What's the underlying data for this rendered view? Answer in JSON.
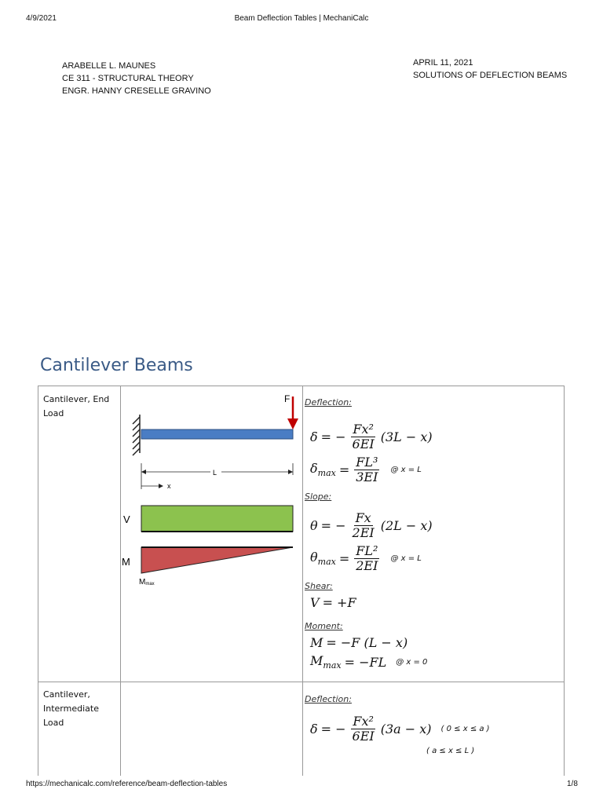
{
  "header": {
    "date": "4/9/2021",
    "title": "Beam Deflection Tables | MechaniCalc"
  },
  "author_block": [
    "ARABELLE L. MAUNES",
    "CE 311 -  STRUCTURAL THEORY",
    "ENGR. HANNY CRESELLE GRAVINO"
  ],
  "date_block": [
    "APRIL 11, 2021",
    "SOLUTIONS OF DEFLECTION BEAMS"
  ],
  "section_title": "Cantilever Beams",
  "table": {
    "rows": [
      {
        "label": "Cantilever, End Load",
        "diagram": {
          "force": "F",
          "length": "L",
          "x": "x",
          "shear": "V",
          "moment": "M",
          "mmax": "M",
          "mmax_sub": "max"
        },
        "items": [
          {
            "heading": "Deflection:"
          },
          {
            "sym": "δ",
            "eq": "= −",
            "num": "Fx²",
            "den": "6EI",
            "rhs": "(3L − x)"
          },
          {
            "sym": "δ",
            "sub": "max",
            "eq": "=",
            "num": "FL³",
            "den": "3EI",
            "note": "@ x = L"
          },
          {
            "heading": "Slope:"
          },
          {
            "sym": "θ",
            "eq": "= −",
            "num": "Fx",
            "den": "2EI",
            "rhs": "(2L − x)"
          },
          {
            "sym": "θ",
            "sub": "max",
            "eq": "=",
            "num": "FL²",
            "den": "2EI",
            "note": "@ x = L"
          },
          {
            "heading": "Shear:"
          },
          {
            "sym": "V",
            "eq": "= +F"
          },
          {
            "heading": "Moment:"
          },
          {
            "sym": "M",
            "eq": "= −F (L − x)"
          },
          {
            "sym": "M",
            "sub": "max",
            "eq": "= −FL",
            "note": "@ x = 0"
          }
        ]
      },
      {
        "label": "Cantilever, Intermediate Load",
        "items": [
          {
            "heading": "Deflection:"
          },
          {
            "sym": "δ",
            "eq": "= −",
            "num": "Fx²",
            "den": "6EI",
            "rhs": "(3a − x)",
            "note": "( 0 ≤ x ≤ a )"
          },
          {
            "note": "( a ≤ x ≤ L )"
          }
        ]
      }
    ]
  },
  "footer": {
    "url": "https://mechanicalc.com/reference/beam-deflection-tables",
    "page": "1/8"
  }
}
